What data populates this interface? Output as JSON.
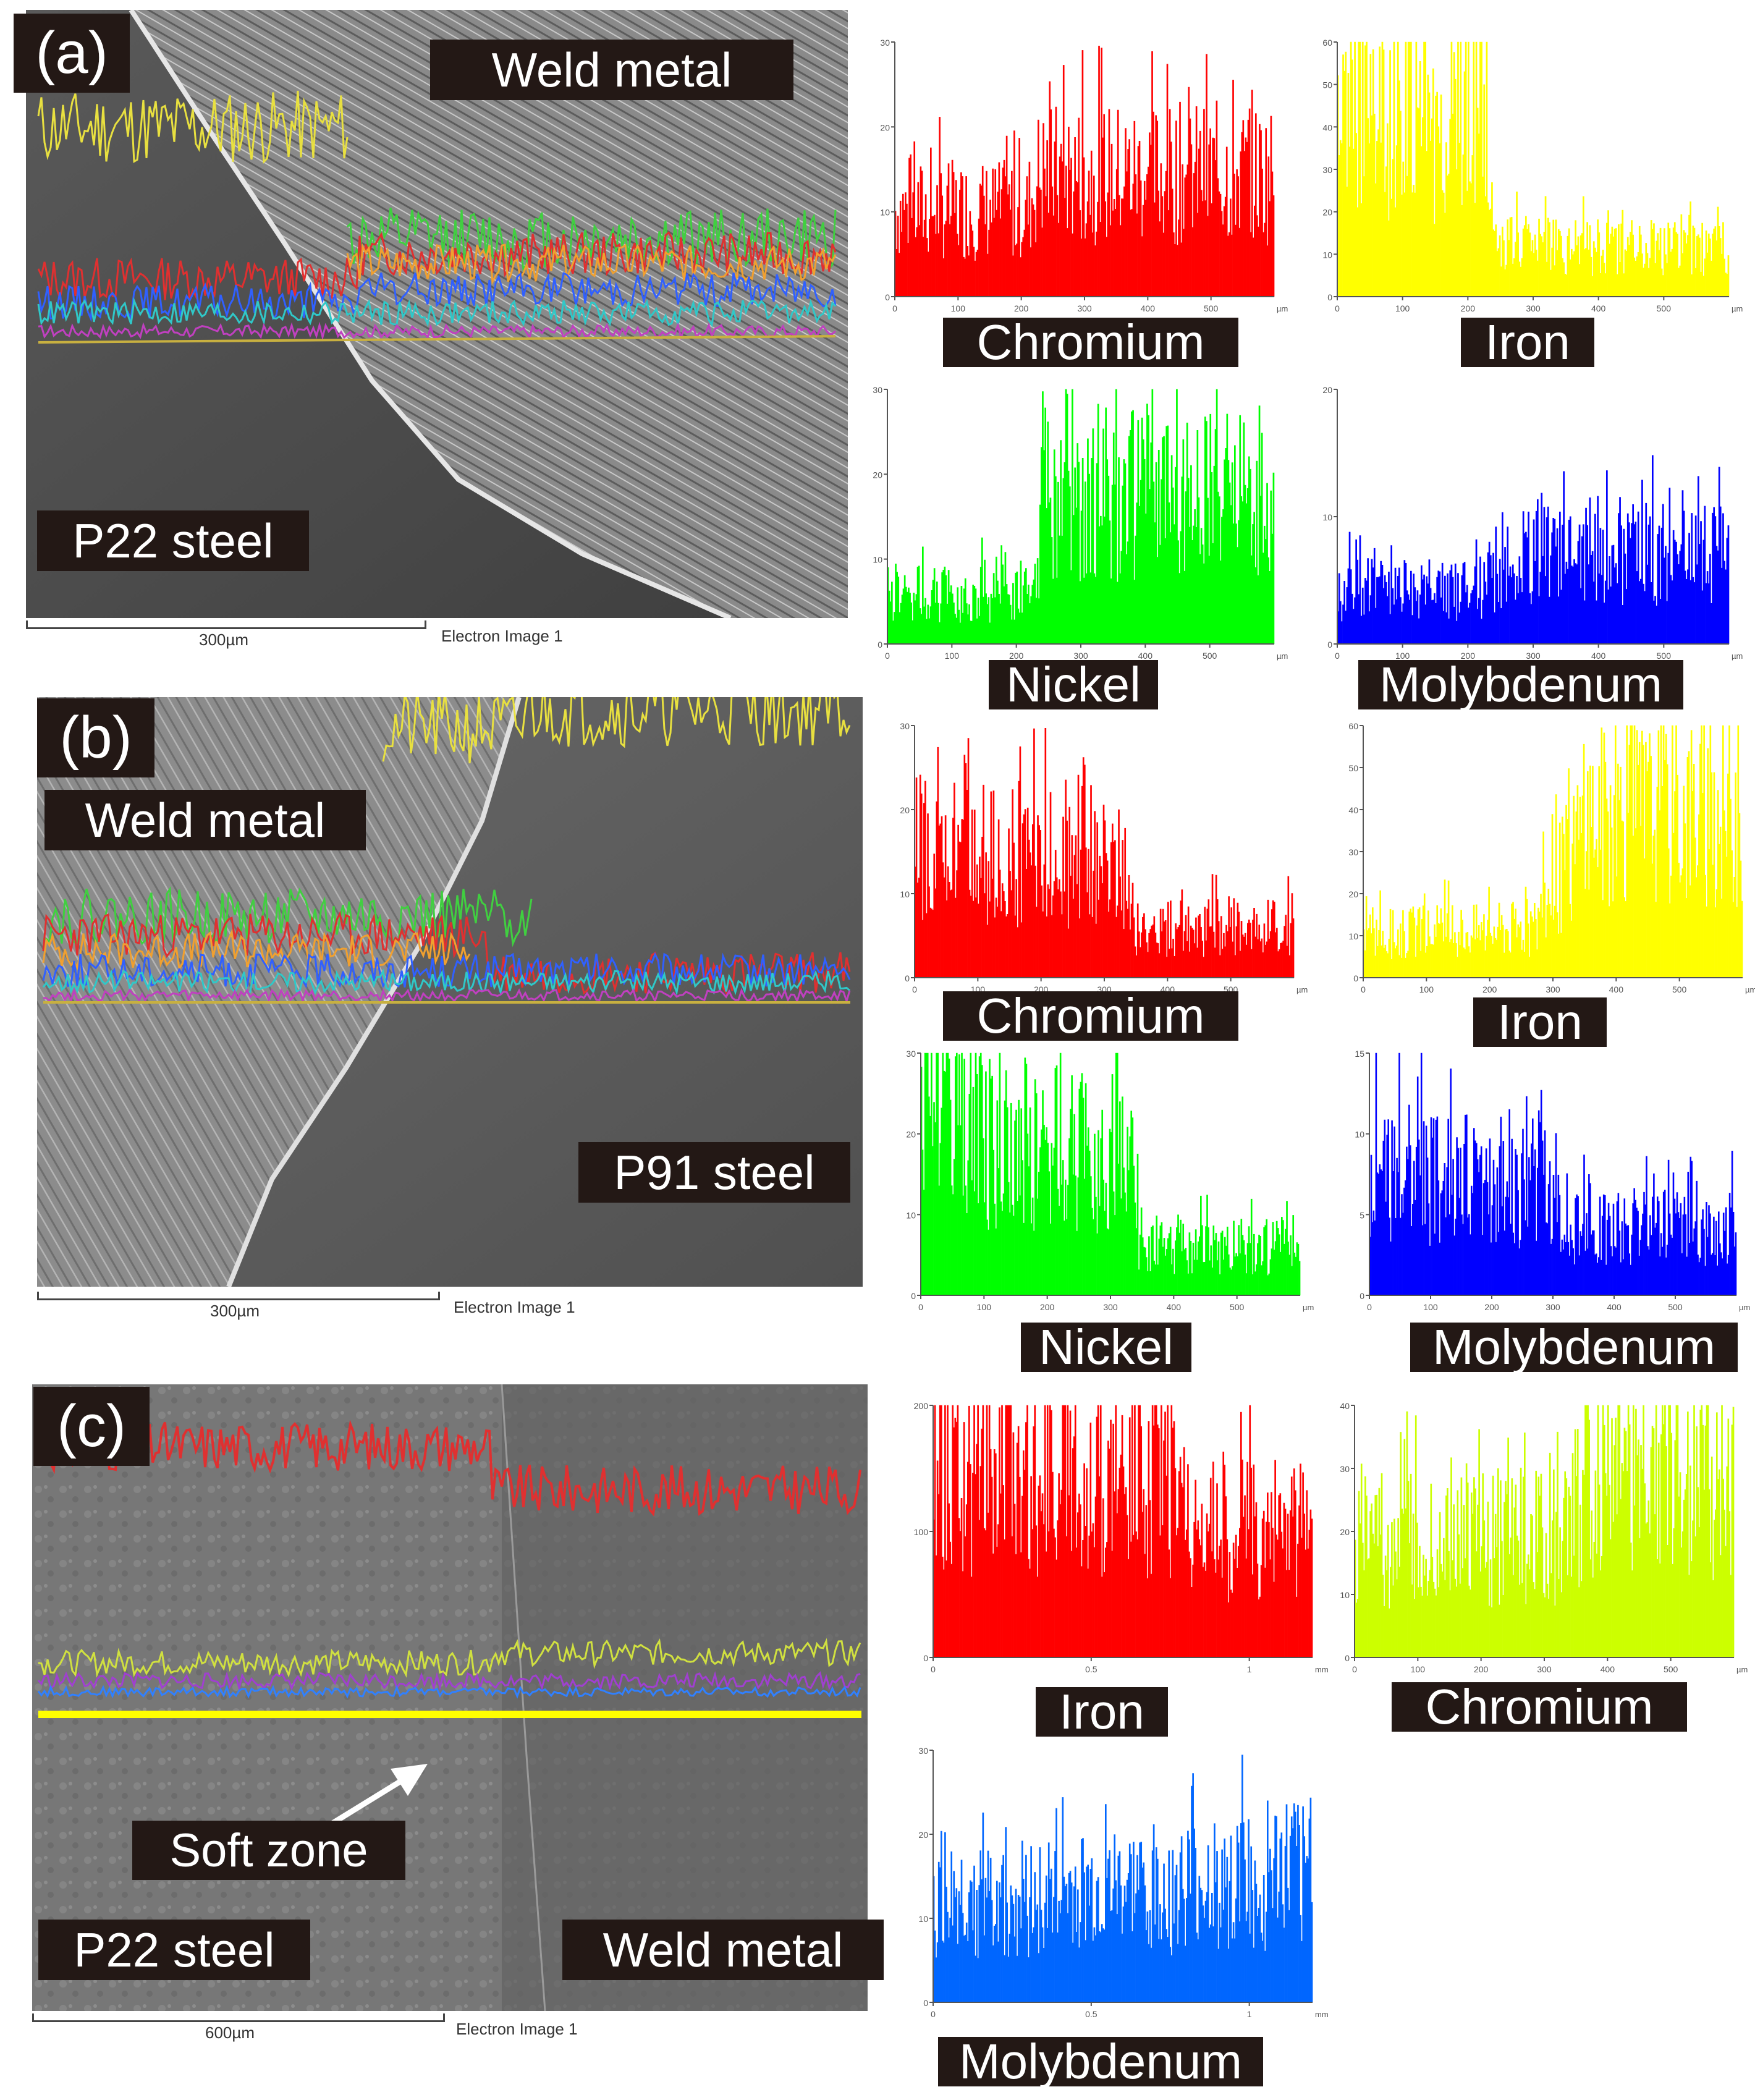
{
  "panels": [
    {
      "id": "a",
      "panel_label": "(a)",
      "labels": [
        "Weld metal",
        "P22 steel"
      ],
      "scale_bar": "300µm",
      "image_caption": "Electron Image 1"
    },
    {
      "id": "b",
      "panel_label": "(b)",
      "labels": [
        "Weld metal",
        "P91 steel"
      ],
      "scale_bar": "300µm",
      "image_caption": "Electron Image 1"
    },
    {
      "id": "c",
      "panel_label": "(c)",
      "labels": [
        "Soft zone",
        "P22 steel",
        "Weld metal"
      ],
      "scale_bar": "600µm",
      "image_caption": "Electron Image 1"
    }
  ],
  "chart_data": [
    {
      "id": "a-cr",
      "type": "bar",
      "element": "Chromium",
      "color": "#ff0000",
      "ylim": [
        0,
        30
      ],
      "yticks": [
        0,
        10,
        20,
        30
      ],
      "xticks": [
        "0",
        "100",
        "200",
        "300",
        "400",
        "500"
      ],
      "xunit": "µm",
      "profile": [
        [
          0,
          12
        ],
        [
          0.35,
          12
        ],
        [
          0.38,
          17
        ],
        [
          1,
          17
        ]
      ]
    },
    {
      "id": "a-fe",
      "type": "bar",
      "element": "Iron",
      "color": "#ffff00",
      "ylim": [
        0,
        60
      ],
      "yticks": [
        0,
        10,
        20,
        30,
        40,
        50,
        60
      ],
      "xticks": [
        "0",
        "100",
        "200",
        "300",
        "400",
        "500"
      ],
      "xunit": "µm",
      "profile": [
        [
          0,
          49
        ],
        [
          0.38,
          48
        ],
        [
          0.4,
          14
        ],
        [
          1,
          13
        ]
      ]
    },
    {
      "id": "a-ni",
      "type": "bar",
      "element": "Nickel",
      "color": "#00ff00",
      "ylim": [
        0,
        30
      ],
      "yticks": [
        0,
        10,
        20,
        30
      ],
      "xticks": [
        "0",
        "100",
        "200",
        "300",
        "400",
        "500"
      ],
      "xunit": "µm",
      "profile": [
        [
          0,
          7
        ],
        [
          0.38,
          7
        ],
        [
          0.4,
          21
        ],
        [
          1,
          20
        ]
      ]
    },
    {
      "id": "a-mo",
      "type": "bar",
      "element": "Molybdenum",
      "color": "#0000ff",
      "ylim": [
        0,
        20
      ],
      "yticks": [
        0,
        10,
        20
      ],
      "xticks": [
        "0",
        "100",
        "200",
        "300",
        "400",
        "500"
      ],
      "xunit": "µm",
      "profile": [
        [
          0,
          5
        ],
        [
          0.35,
          5
        ],
        [
          0.5,
          9
        ],
        [
          1,
          8
        ]
      ]
    },
    {
      "id": "b-cr",
      "type": "bar",
      "element": "Chromium",
      "color": "#ff0000",
      "ylim": [
        0,
        30
      ],
      "yticks": [
        0,
        10,
        20,
        30
      ],
      "xticks": [
        "0",
        "100",
        "200",
        "300",
        "400",
        "500"
      ],
      "xunit": "µm",
      "profile": [
        [
          0,
          18
        ],
        [
          0.55,
          16
        ],
        [
          0.58,
          7
        ],
        [
          1,
          7
        ]
      ]
    },
    {
      "id": "b-fe",
      "type": "bar",
      "element": "Iron",
      "color": "#ffff00",
      "ylim": [
        0,
        60
      ],
      "yticks": [
        0,
        10,
        20,
        30,
        40,
        50,
        60
      ],
      "xticks": [
        "0",
        "100",
        "200",
        "300",
        "400",
        "500"
      ],
      "xunit": "µm",
      "profile": [
        [
          0,
          12
        ],
        [
          0.45,
          14
        ],
        [
          0.6,
          46
        ],
        [
          1,
          48
        ]
      ]
    },
    {
      "id": "b-ni",
      "type": "bar",
      "element": "Nickel",
      "color": "#00ff00",
      "ylim": [
        0,
        30
      ],
      "yticks": [
        0,
        10,
        20,
        30
      ],
      "xticks": [
        "0",
        "100",
        "200",
        "300",
        "400",
        "500"
      ],
      "xunit": "µm",
      "profile": [
        [
          0,
          24
        ],
        [
          0.55,
          20
        ],
        [
          0.58,
          7
        ],
        [
          1,
          7
        ]
      ]
    },
    {
      "id": "b-mo",
      "type": "bar",
      "element": "Molybdenum",
      "color": "#0000ff",
      "ylim": [
        0,
        15
      ],
      "yticks": [
        0,
        5,
        10,
        15
      ],
      "xticks": [
        "0",
        "100",
        "200",
        "300",
        "400",
        "500"
      ],
      "xunit": "µm",
      "profile": [
        [
          0,
          9
        ],
        [
          0.5,
          8
        ],
        [
          0.55,
          5
        ],
        [
          1,
          5
        ]
      ]
    },
    {
      "id": "c-fe",
      "type": "bar",
      "element": "Iron",
      "color": "#ff0000",
      "ylim": [
        0,
        200
      ],
      "yticks": [
        0,
        100,
        200
      ],
      "xticks": [
        "0",
        "0.5",
        "1"
      ],
      "xunit": "mm",
      "profile": [
        [
          0,
          175
        ],
        [
          0.62,
          170
        ],
        [
          0.64,
          118
        ],
        [
          1,
          118
        ]
      ]
    },
    {
      "id": "c-cr",
      "type": "bar",
      "element": "Chromium",
      "color": "#ccff00",
      "ylim": [
        0,
        40
      ],
      "yticks": [
        0,
        10,
        20,
        30,
        40
      ],
      "xticks": [
        "0",
        "100",
        "200",
        "300",
        "400",
        "500"
      ],
      "xunit": "µm",
      "profile": [
        [
          0,
          22
        ],
        [
          0.55,
          22
        ],
        [
          0.62,
          33
        ],
        [
          1,
          34
        ]
      ]
    },
    {
      "id": "c-mo",
      "type": "bar",
      "element": "Molybdenum",
      "color": "#0066ff",
      "ylim": [
        0,
        30
      ],
      "yticks": [
        0,
        10,
        20,
        30
      ],
      "xticks": [
        "0",
        "0.5",
        "1"
      ],
      "xunit": "mm",
      "profile": [
        [
          0,
          14
        ],
        [
          0.6,
          15
        ],
        [
          1,
          18
        ]
      ]
    }
  ]
}
